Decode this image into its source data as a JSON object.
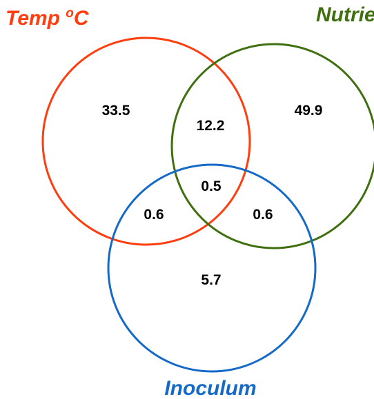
{
  "venn": {
    "sets": [
      {
        "key": "temp",
        "label_main": "Temp ",
        "label_sup": "o",
        "label_end": "C",
        "color": "#ff3d0f"
      },
      {
        "key": "nutrients",
        "label": "Nutrients",
        "color": "#3f6f0f"
      },
      {
        "key": "inoculum",
        "label": "Inoculum",
        "color": "#1569c7"
      }
    ],
    "regions": {
      "temp_only": "33.5",
      "nutrients_only": "49.9",
      "temp_nutrients": "12.2",
      "all_three": "0.5",
      "temp_inoculum": "0.6",
      "nutrients_inoculum": "0.6",
      "inoculum_only": "5.7"
    }
  }
}
